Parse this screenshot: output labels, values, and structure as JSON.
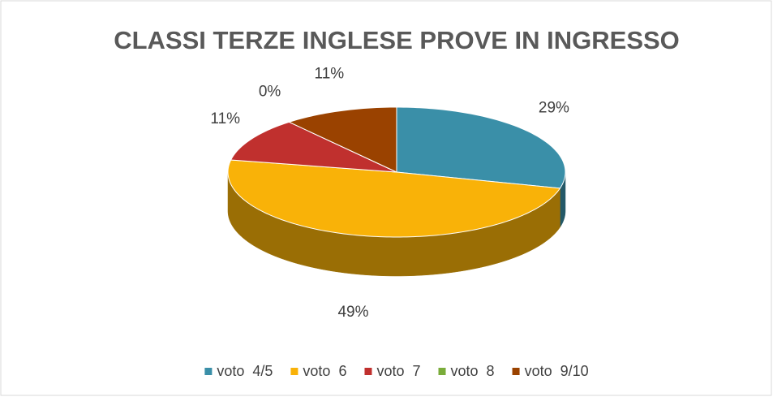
{
  "chart_data": {
    "type": "pie",
    "title": "CLASSI TERZE INGLESE PROVE IN INGRESSO",
    "categories": [
      "voto  4/5",
      "voto  6",
      "voto  7",
      "voto  8",
      "voto  9/10"
    ],
    "values": [
      29,
      49,
      11,
      0,
      11
    ],
    "value_labels": [
      "29%",
      "49%",
      "11%",
      "0%",
      "11%"
    ],
    "colors": [
      "#3a8fa8",
      "#f9b208",
      "#c0302e",
      "#7aac3a",
      "#9a4200"
    ],
    "legend": "bottom"
  }
}
